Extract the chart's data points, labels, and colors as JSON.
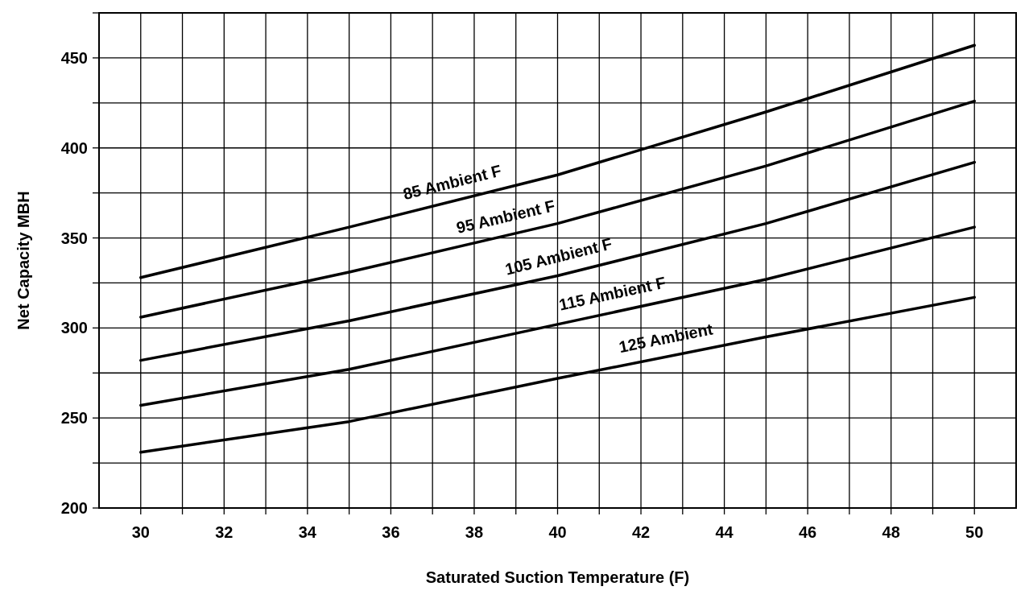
{
  "chart_data": {
    "type": "line",
    "xlabel": "Saturated Suction Temperature (F)",
    "ylabel": "Net Capacity MBH",
    "x": [
      30,
      35,
      40,
      45,
      50
    ],
    "series": [
      {
        "name": "85 Ambient F",
        "color": "#000000",
        "values": [
          328,
          356,
          385,
          420,
          457
        ]
      },
      {
        "name": "95 Ambient F",
        "color": "#000000",
        "values": [
          306,
          331,
          358,
          390,
          426
        ]
      },
      {
        "name": "105 Ambient F",
        "color": "#000000",
        "values": [
          282,
          304,
          329,
          358,
          392
        ]
      },
      {
        "name": "115 Ambient F",
        "color": "#000000",
        "values": [
          257,
          277,
          302,
          327,
          356
        ]
      },
      {
        "name": "125 Ambient",
        "color": "#000000",
        "values": [
          231,
          248,
          272,
          295,
          317
        ]
      }
    ],
    "xlim": [
      29,
      51
    ],
    "xticks": [
      30,
      {
        "value": 31,
        "label": null
      },
      32,
      {
        "value": 33,
        "label": null
      },
      34,
      {
        "value": 35,
        "label": null
      },
      36,
      {
        "value": 37,
        "label": null
      },
      38,
      {
        "value": 39,
        "label": null
      },
      40,
      {
        "value": 41,
        "label": null
      },
      42,
      {
        "value": 43,
        "label": null
      },
      44,
      {
        "value": 45,
        "label": null
      },
      46,
      {
        "value": 47,
        "label": null
      },
      48,
      {
        "value": 49,
        "label": null
      },
      50
    ],
    "ylim": [
      200,
      475
    ],
    "yticks": [
      200,
      {
        "value": 225,
        "label": null
      },
      250,
      {
        "value": 275,
        "label": null
      },
      300,
      {
        "value": 325,
        "label": null
      },
      350,
      {
        "value": 375,
        "label": null
      },
      400,
      {
        "value": 425,
        "label": null
      },
      450,
      {
        "value": 475,
        "label": null
      }
    ],
    "grid": true,
    "marker": "none",
    "line_style": "solid"
  }
}
